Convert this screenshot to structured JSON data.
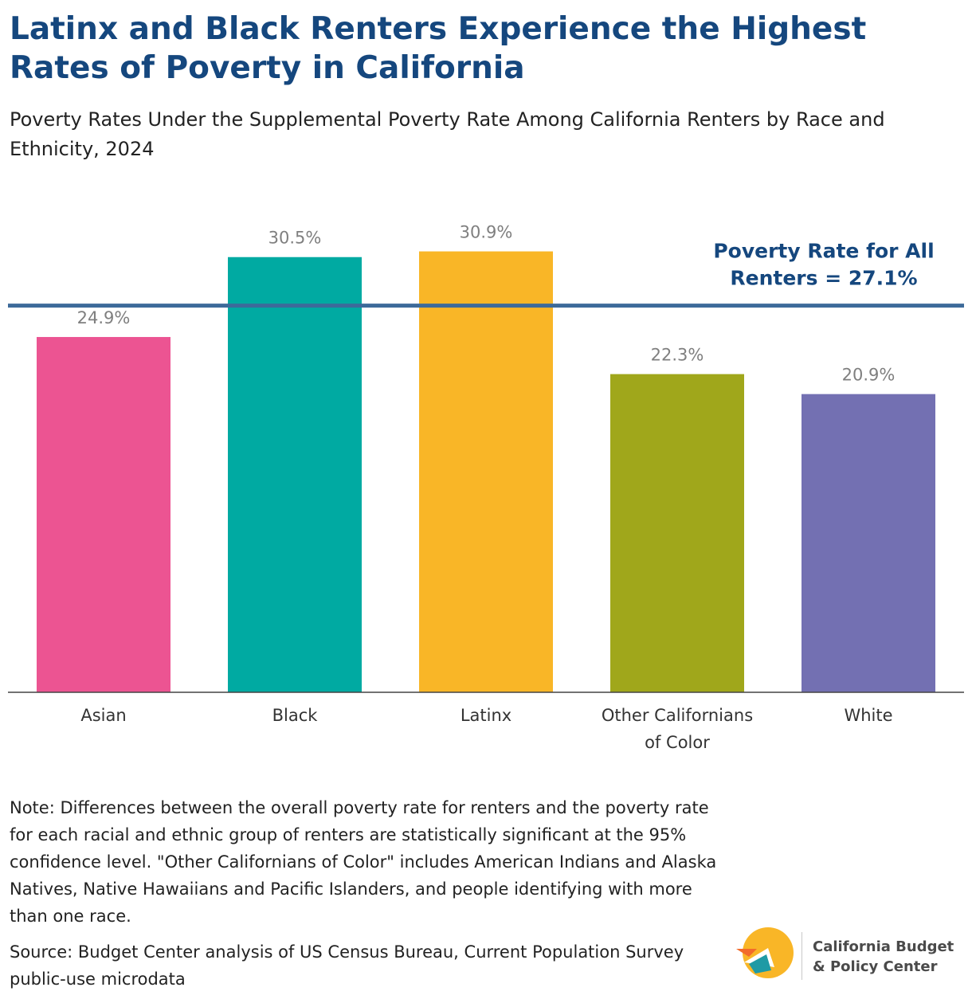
{
  "header": {
    "title": "Latinx and Black Renters Experience the Highest Rates of Poverty in California",
    "subtitle": "Poverty Rates Under the Supplemental Poverty Rate Among California Renters by Race and Ethnicity, 2024"
  },
  "chart_data": {
    "type": "bar",
    "categories": [
      "Asian",
      "Black",
      "Latinx",
      "Other Californians of Color",
      "White"
    ],
    "category_lines": [
      [
        "Asian"
      ],
      [
        "Black"
      ],
      [
        "Latinx"
      ],
      [
        "Other Californians",
        "of Color"
      ],
      [
        "White"
      ]
    ],
    "values": [
      24.9,
      30.5,
      30.9,
      22.3,
      20.9
    ],
    "data_labels": [
      "24.9%",
      "30.5%",
      "30.9%",
      "22.3%",
      "20.9%"
    ],
    "colors": [
      "#ec5492",
      "#00aaa2",
      "#f9b627",
      "#a0a71b",
      "#7370b2"
    ],
    "reference_line": {
      "value": 27.1,
      "label_lines": [
        "Poverty Rate for All",
        "Renters = 27.1%"
      ],
      "color": "#3d6a9a"
    },
    "ylim": [
      0,
      33.5
    ],
    "xlabel": "",
    "ylabel": "",
    "grid": false,
    "legend": "none"
  },
  "footer": {
    "note": "Note: Differences between the overall poverty rate for renters and the poverty rate for each racial and ethnic group of renters are statistically significant at the 95% confidence level. \"Other Californians of Color\" includes American Indians and Alaska Natives, Native Hawaiians and Pacific Islanders, and people identifying with more than one race.",
    "source": "Source: Budget Center analysis of US Census Bureau, Current Population Survey public-use microdata"
  },
  "logo": {
    "line1": "California Budget",
    "line2": "& Policy Center",
    "colors": [
      "#f9b627",
      "#f26b2a",
      "#1f9aa5"
    ]
  }
}
